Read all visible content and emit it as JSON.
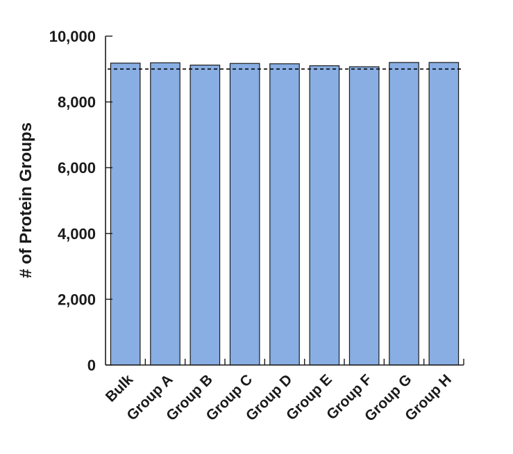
{
  "chart_data": {
    "type": "bar",
    "title": "",
    "xlabel": "",
    "ylabel": "# of Protein Groups",
    "ylim": [
      0,
      10000
    ],
    "yticks": [
      0,
      2000,
      4000,
      6000,
      8000,
      10000
    ],
    "ytick_labels": [
      "0",
      "2,000",
      "4,000",
      "6,000",
      "8,000",
      "10,000"
    ],
    "categories": [
      "Bulk",
      "Group A",
      "Group B",
      "Group C",
      "Group D",
      "Group E",
      "Group F",
      "Group G",
      "Group H"
    ],
    "values": [
      9180,
      9190,
      9120,
      9170,
      9160,
      9100,
      9070,
      9200,
      9200
    ],
    "reference_line": 9000,
    "grid": false,
    "bar_color": "#88aee3",
    "bar_edge_color": "#1a1a1a",
    "reference_line_color": "#000000"
  }
}
